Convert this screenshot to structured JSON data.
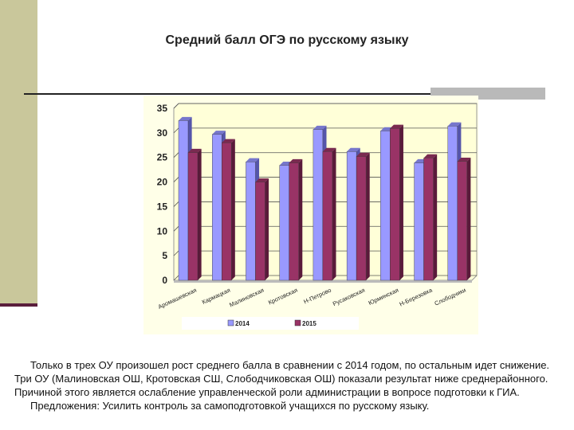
{
  "title": "Средний балл ОГЭ по русскому языку",
  "chart_data": {
    "type": "bar",
    "title": "",
    "categories": [
      "Аромашевская",
      "Кармацкая",
      "Малиновская",
      "Кротовская",
      "Н-Петрово",
      "Русаковская",
      "Юрминская",
      "Н-Березовка",
      "Слободчики"
    ],
    "series": [
      {
        "name": "2014",
        "color": "#9999ff",
        "values": [
          32.5,
          29.7,
          24.1,
          23.4,
          30.7,
          26.2,
          30.4,
          23.9,
          31.4
        ]
      },
      {
        "name": "2015",
        "color": "#993366",
        "values": [
          26.0,
          28.0,
          20.0,
          23.9,
          26.2,
          25.2,
          30.9,
          24.9,
          24.2
        ]
      }
    ],
    "ylim": [
      0,
      35
    ],
    "yticks": [
      "0",
      "5",
      "10",
      "15",
      "20",
      "25",
      "30",
      "35"
    ],
    "grid": true,
    "legend": "bottom",
    "background": "#ffffe0"
  },
  "text": {
    "p1": "Только в трех ОУ произошел рост среднего балла в сравнении с 2014 годом, по остальным идет снижение. Три ОУ (Малиновская ОШ, Кротовская СШ, Слободчиковская ОШ) показали результат ниже среднерайонного. Причиной этого является ослабление управленческой роли администрации в вопросе подготовки к ГИА.",
    "p2": "Предложения: Усилить контроль за самоподготовкой учащихся по русскому языку."
  }
}
